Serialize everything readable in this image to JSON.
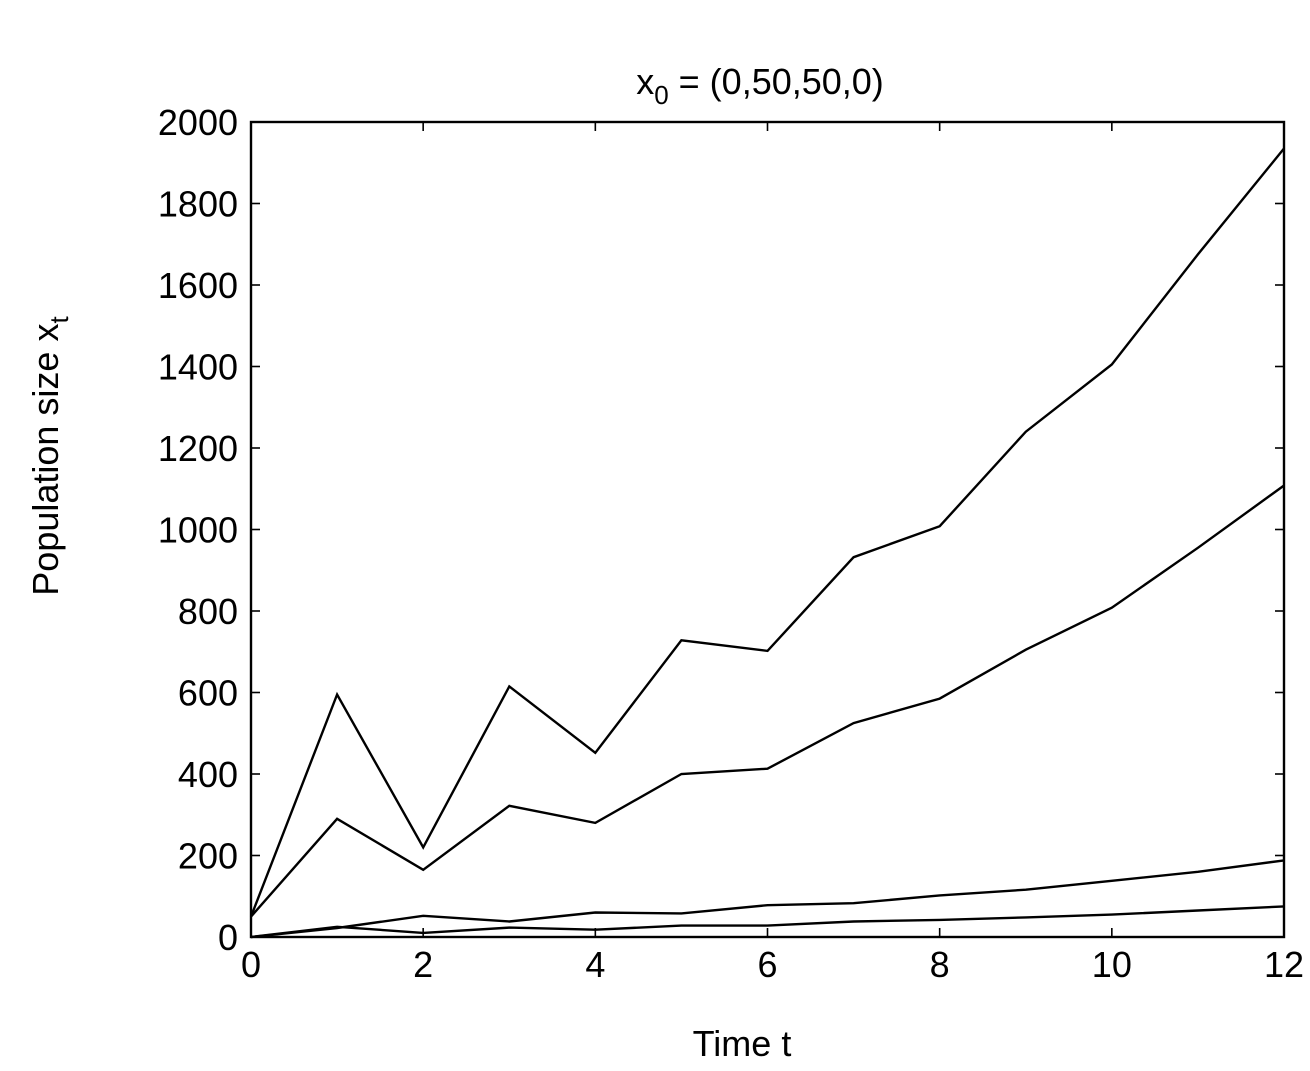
{
  "chart_data": {
    "type": "line",
    "title": {
      "base": "x",
      "subscript": "0",
      "rest": " = (0,50,50,0)"
    },
    "xlabel": "Time t",
    "ylabel": {
      "base": "Population size x",
      "subscript": "t"
    },
    "xlim": [
      0,
      12
    ],
    "ylim": [
      0,
      2000
    ],
    "xticks": [
      0,
      2,
      4,
      6,
      8,
      10,
      12
    ],
    "yticks": [
      0,
      200,
      400,
      600,
      800,
      1000,
      1200,
      1400,
      1600,
      1800,
      2000
    ],
    "grid": false,
    "line_color": "#000000",
    "x": [
      0,
      1,
      2,
      3,
      4,
      5,
      6,
      7,
      8,
      9,
      10,
      11,
      12
    ],
    "series": [
      {
        "values": [
          50,
          595,
          220,
          615,
          452,
          728,
          702,
          932,
          1008,
          1240,
          1405,
          1675,
          1935
        ]
      },
      {
        "values": [
          50,
          290,
          165,
          322,
          280,
          400,
          413,
          525,
          585,
          705,
          808,
          955,
          1108
        ]
      },
      {
        "values": [
          0,
          22,
          52,
          38,
          60,
          58,
          78,
          83,
          102,
          116,
          138,
          160,
          188
        ]
      },
      {
        "values": [
          0,
          25,
          10,
          23,
          18,
          28,
          28,
          38,
          42,
          48,
          55,
          65,
          75
        ]
      }
    ]
  }
}
